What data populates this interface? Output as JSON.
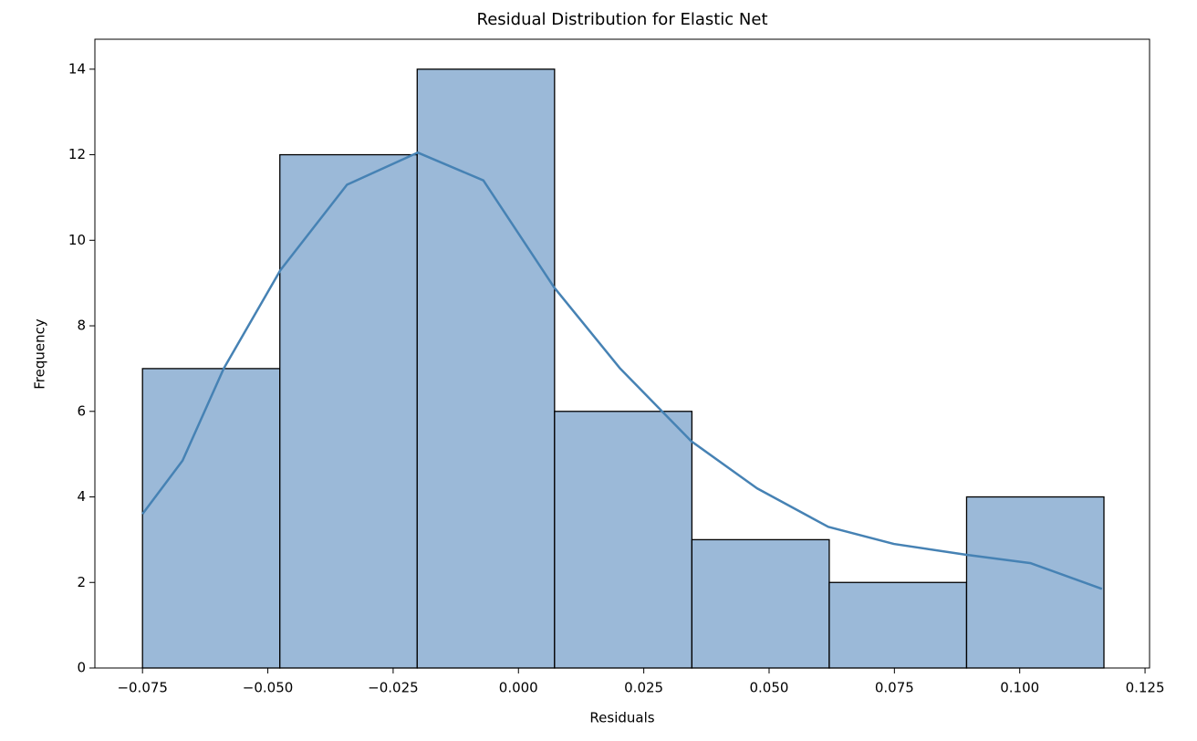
{
  "chart_data": {
    "type": "histogram",
    "title": "Residual Distribution for Elastic Net",
    "x_label": "Residuals",
    "y_label": "Frequency",
    "bins": [
      -0.075,
      -0.0476,
      -0.0202,
      0.0072,
      0.0346,
      0.062,
      0.0894,
      0.1168
    ],
    "values": [
      7,
      12,
      14,
      6,
      3,
      2,
      4
    ],
    "color": "#9bb9d8",
    "edge_color": "#000000",
    "kde": {
      "color": "#4682b4",
      "x": [
        -0.075,
        -0.067,
        -0.0588,
        -0.0475,
        -0.0342,
        -0.0201,
        -0.007,
        0.0071,
        0.0203,
        0.0345,
        0.0476,
        0.0618,
        0.0749,
        0.0891,
        0.1022,
        0.1164
      ],
      "values": [
        3.6,
        4.85,
        7.0,
        9.3,
        11.3,
        12.05,
        11.4,
        8.9,
        7.0,
        5.3,
        4.2,
        3.3,
        2.9,
        2.65,
        2.45,
        1.85
      ]
    },
    "xlim": [
      -0.0845,
      0.1259
    ],
    "ylim": [
      0,
      14.7
    ],
    "xticks": [
      {
        "value": -0.075,
        "label": "−0.075"
      },
      {
        "value": -0.05,
        "label": "−0.050"
      },
      {
        "value": -0.025,
        "label": "−0.025"
      },
      {
        "value": 0,
        "label": "0.000"
      },
      {
        "value": 0.025,
        "label": "0.025"
      },
      {
        "value": 0.05,
        "label": "0.050"
      },
      {
        "value": 0.075,
        "label": "0.075"
      },
      {
        "value": 0.1,
        "label": "0.100"
      },
      {
        "value": 0.125,
        "label": "0.125"
      }
    ],
    "yticks": [
      0,
      2,
      4,
      6,
      8,
      10,
      12,
      14
    ]
  }
}
